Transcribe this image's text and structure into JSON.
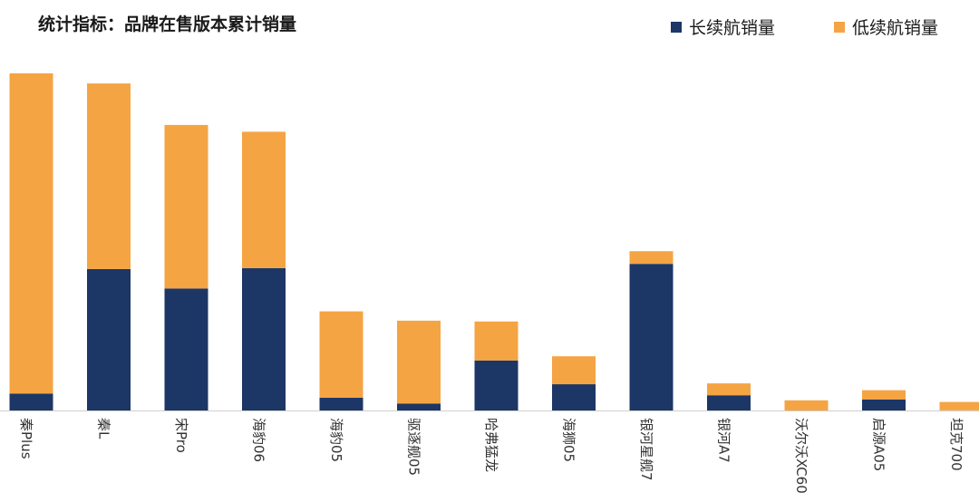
{
  "title": "统计指标：品牌在售版本累计销量",
  "colors": {
    "long_range": "#1c3766",
    "short_range": "#f5a443"
  },
  "chart_data": {
    "type": "bar",
    "stacked": true,
    "title": "统计指标：品牌在售版本累计销量",
    "xlabel": "",
    "ylabel": "",
    "ylim": [
      0,
      400
    ],
    "grid": false,
    "legend_position": "top-right",
    "categories": [
      "秦Plus",
      "秦L",
      "宋Pro",
      "海豹06",
      "海豹05",
      "驱逐舰05",
      "哈弗猛龙",
      "海狮05",
      "银河星舰7",
      "银河A7",
      "沃尔沃XC60",
      "启源A05",
      "坦克700"
    ],
    "series": [
      {
        "name": "长续航销量",
        "values": [
          20,
          167,
          144,
          168,
          15,
          8,
          59,
          31,
          173,
          18,
          0,
          13,
          0
        ]
      },
      {
        "name": "低续航销量",
        "values": [
          378,
          219,
          193,
          161,
          102,
          98,
          46,
          33,
          15,
          14,
          12,
          11,
          10
        ]
      }
    ]
  }
}
